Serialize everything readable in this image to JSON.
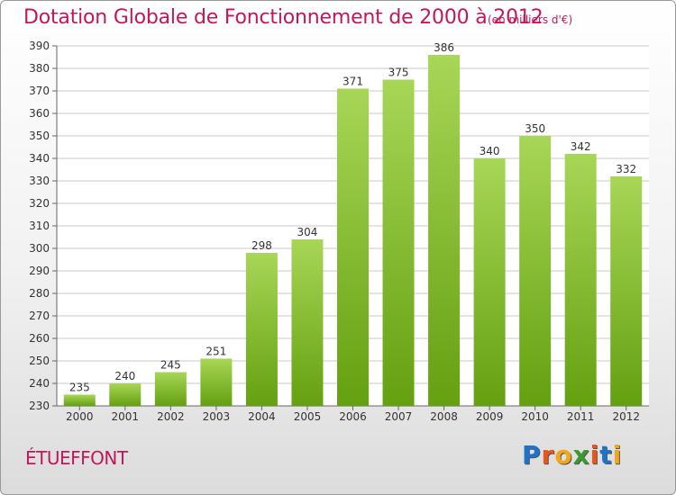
{
  "header": {
    "title": "Dotation Globale de Fonctionnement de 2000 à 2012",
    "subtitle": "(en milliers d'€)"
  },
  "footer": {
    "commune": "ÉTUEFFONT",
    "logo_text": "Proxiti"
  },
  "colors": {
    "title": "#c2185b",
    "bar_top": "#a8d657",
    "bar_bottom": "#64a010",
    "grid": "#c9c9c9",
    "logo_letters": [
      "#1e73c8",
      "#e8561a",
      "#f2a71b",
      "#3a9a2e",
      "#e8561a",
      "#1e73c8",
      "#f2a71b"
    ]
  },
  "chart_data": {
    "type": "bar",
    "title": "Dotation Globale de Fonctionnement de 2000 à 2012",
    "subtitle": "(en milliers d'€)",
    "categories": [
      "2000",
      "2001",
      "2002",
      "2003",
      "2004",
      "2005",
      "2006",
      "2007",
      "2008",
      "2009",
      "2010",
      "2011",
      "2012"
    ],
    "values": [
      235,
      240,
      245,
      251,
      298,
      304,
      371,
      375,
      386,
      340,
      350,
      342,
      332
    ],
    "ylim": [
      230,
      390
    ],
    "yticks": [
      230,
      240,
      250,
      260,
      270,
      280,
      290,
      300,
      310,
      320,
      330,
      340,
      350,
      360,
      370,
      380,
      390
    ],
    "grid": true,
    "xlabel": "",
    "ylabel": ""
  }
}
